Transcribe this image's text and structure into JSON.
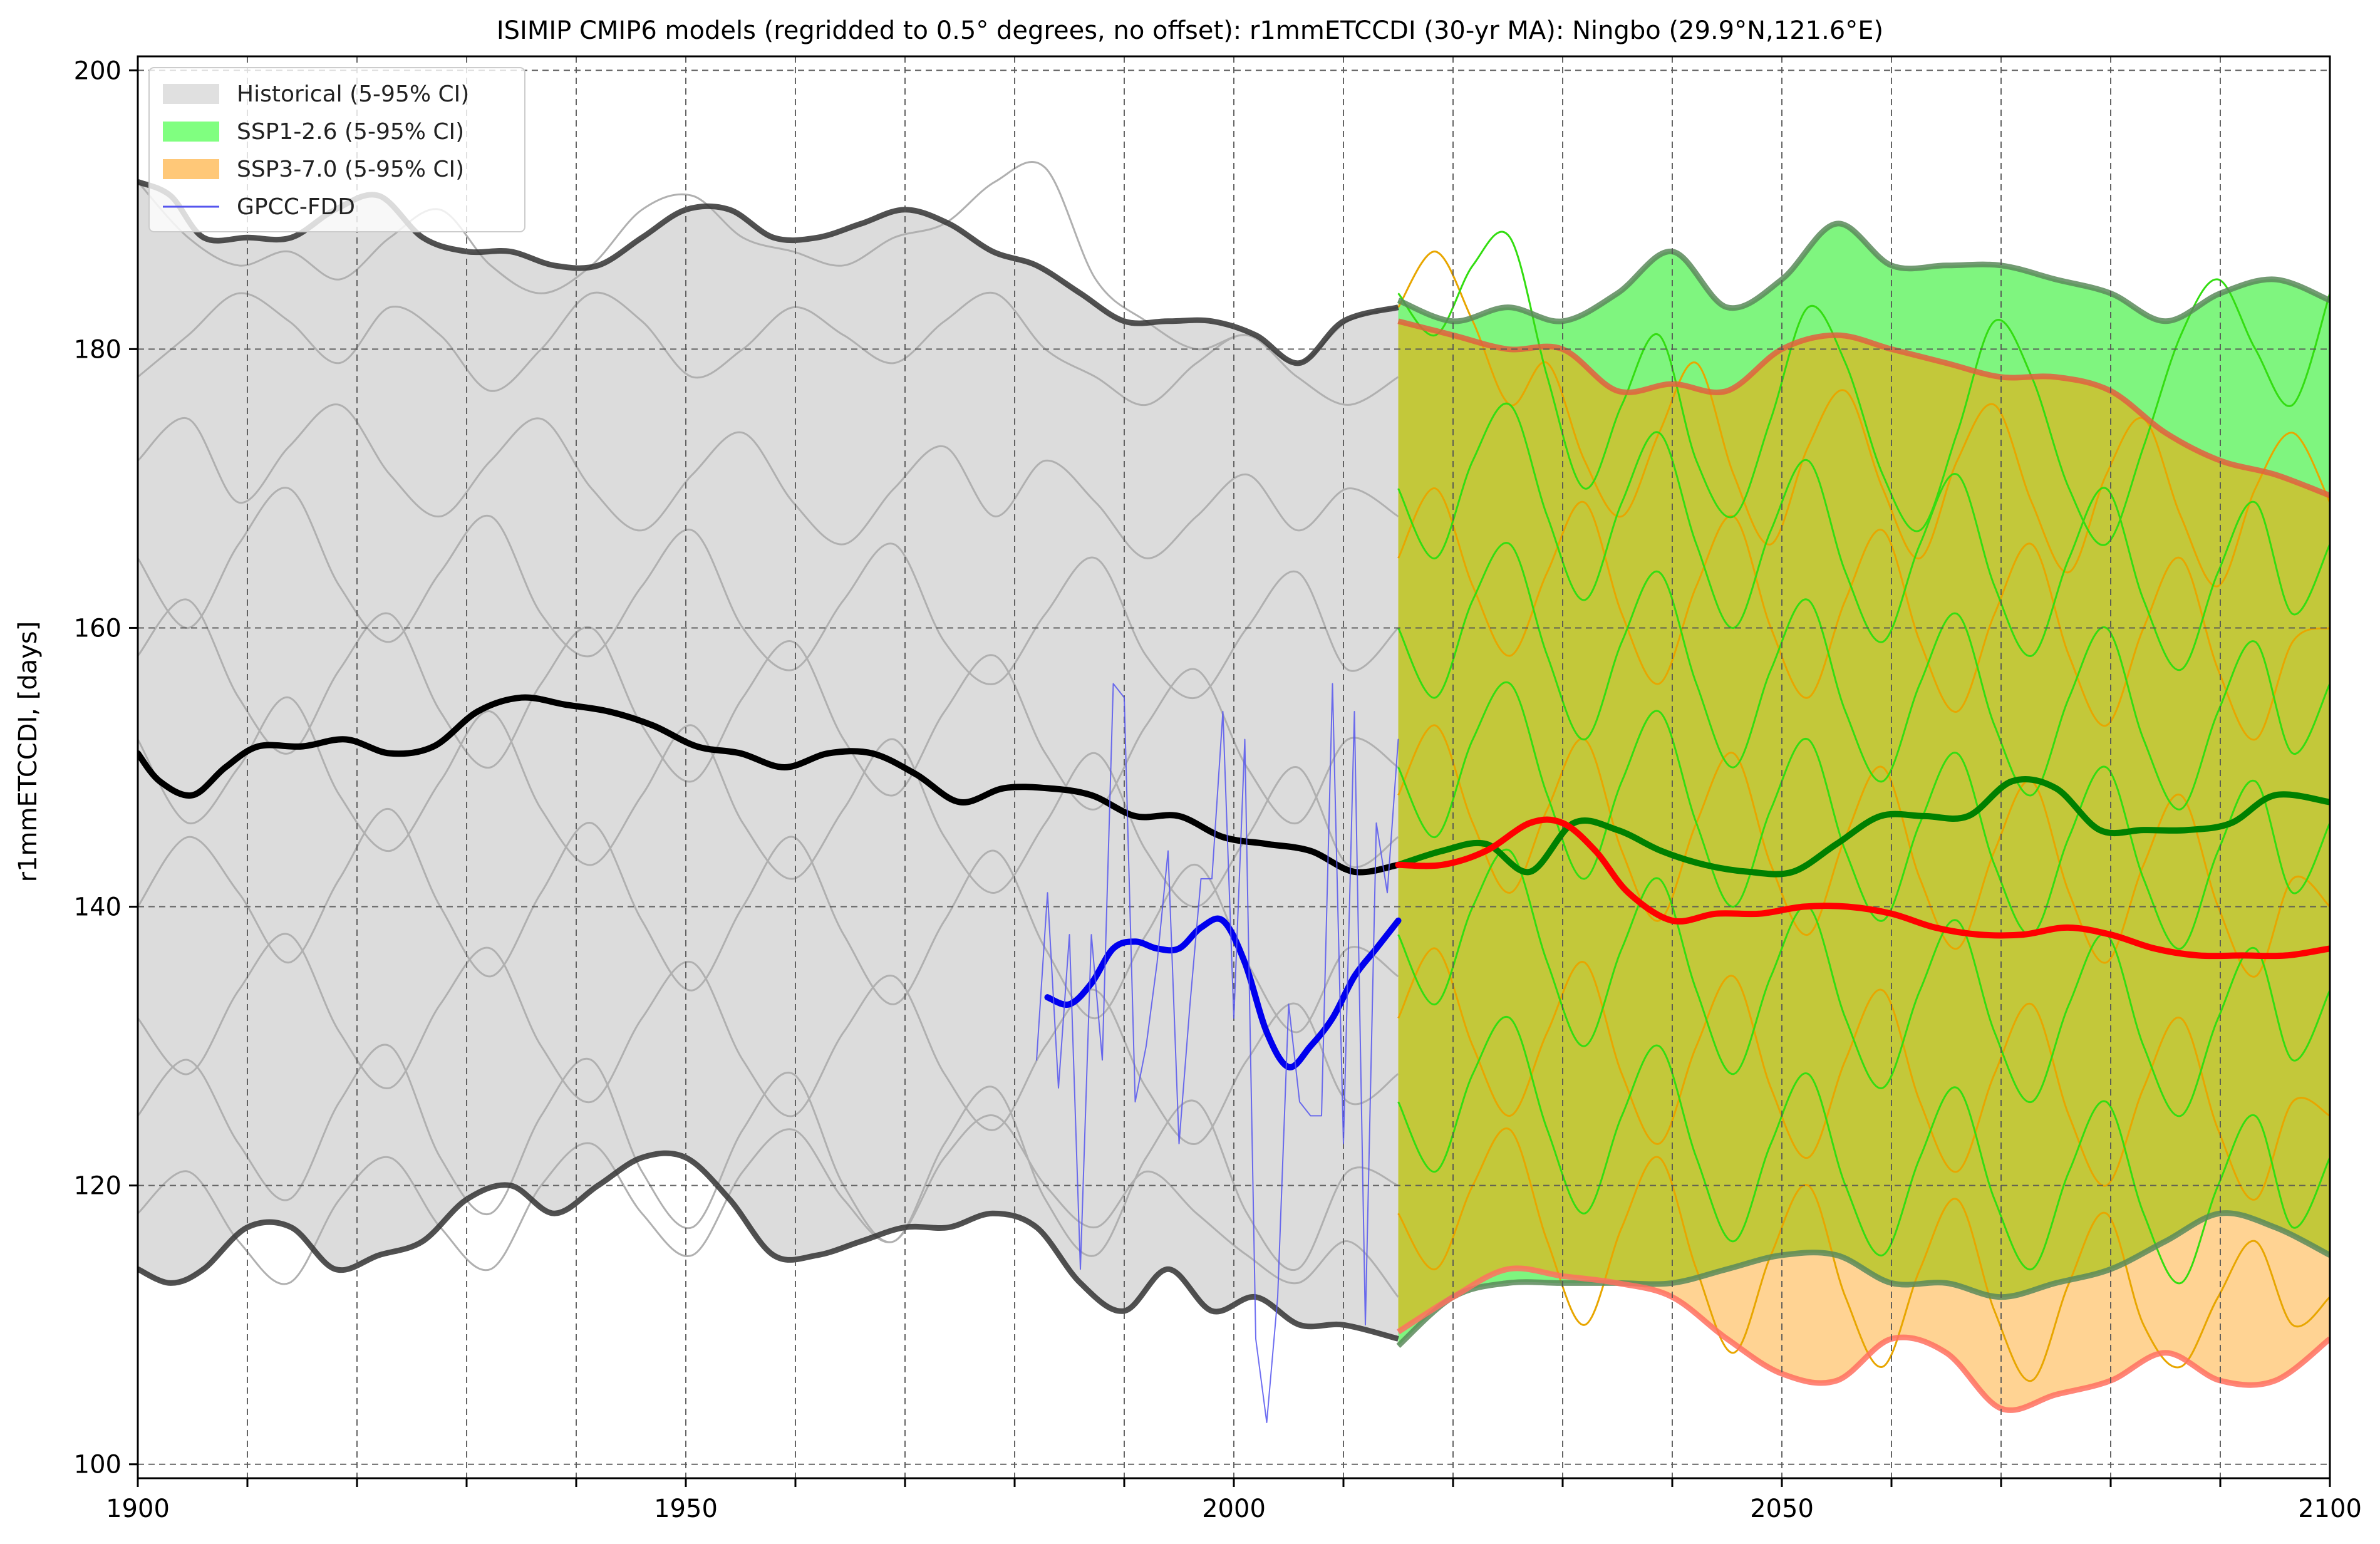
{
  "chart_data": {
    "type": "line",
    "title": "ISIMIP CMIP6 models (regridded to 0.5° degrees, no offset): r1mmETCCDI (30-yr MA): Ningbo (29.9°N,121.6°E)",
    "xlabel": "",
    "ylabel": "r1mmETCCDI, [days]",
    "xlim": [
      1900,
      2100
    ],
    "ylim": [
      99,
      201
    ],
    "x_ticks": [
      1900,
      1950,
      2000,
      2050,
      2100
    ],
    "y_ticks": [
      100,
      120,
      140,
      160,
      180,
      200
    ],
    "grid": true,
    "legend_position": "top-left",
    "legend": [
      {
        "label": "Historical (5-95% CI)",
        "color": "#e0e0e0",
        "kind": "patch"
      },
      {
        "label": "SSP1-2.6 (5-95% CI)",
        "color": "#80ff80",
        "kind": "patch"
      },
      {
        "label": "SSP3-7.0 (5-95% CI)",
        "color": "#ffc878",
        "kind": "patch"
      },
      {
        "label": "GPCC-FDD",
        "color": "#5555ee",
        "kind": "line"
      }
    ],
    "bands": [
      {
        "name": "Historical (5-95% CI)",
        "color": "#dcdcdc",
        "x": [
          1900,
          1903,
          1906,
          1910,
          1914,
          1918,
          1922,
          1926,
          1930,
          1934,
          1938,
          1942,
          1946,
          1950,
          1954,
          1958,
          1962,
          1966,
          1970,
          1974,
          1978,
          1982,
          1986,
          1990,
          1994,
          1998,
          2002,
          2006,
          2010,
          2015
        ],
        "upper": [
          192,
          191,
          188,
          188,
          188,
          190,
          191,
          188,
          187,
          187,
          186,
          186,
          188,
          190,
          190,
          188,
          188,
          189,
          190,
          189,
          187,
          186,
          184,
          182,
          182,
          182,
          181,
          179,
          182,
          183
        ],
        "lower": [
          114,
          113,
          114,
          117,
          117,
          114,
          115,
          116,
          119,
          120,
          118,
          120,
          122,
          122,
          119,
          115,
          115,
          116,
          117,
          117,
          118,
          117,
          113,
          111,
          114,
          111,
          112,
          110,
          110,
          109
        ]
      },
      {
        "name": "SSP1-2.6 (5-95% CI)",
        "color": "#7ff57f",
        "x": [
          2015,
          2020,
          2025,
          2030,
          2035,
          2040,
          2045,
          2050,
          2055,
          2060,
          2065,
          2070,
          2075,
          2080,
          2085,
          2090,
          2095,
          2100
        ],
        "upper": [
          183.5,
          182,
          183,
          182,
          184,
          187,
          183,
          185,
          189,
          186,
          186,
          186,
          185,
          184,
          182,
          184,
          185,
          183.5
        ],
        "lower": [
          108.5,
          112,
          113,
          113,
          113,
          113,
          114,
          115,
          115,
          113,
          113,
          112,
          113,
          114,
          116,
          118,
          117,
          115
        ]
      },
      {
        "name": "SSP3-7.0 (5-95% CI)",
        "color": "#ffc878",
        "x": [
          2015,
          2020,
          2025,
          2030,
          2035,
          2040,
          2045,
          2050,
          2055,
          2060,
          2065,
          2070,
          2075,
          2080,
          2085,
          2090,
          2095,
          2100
        ],
        "upper": [
          182,
          181,
          180,
          180,
          177,
          177.5,
          177,
          180,
          181,
          180,
          179,
          178,
          178,
          177,
          174,
          172,
          171,
          169.5
        ],
        "lower": [
          109.5,
          112,
          114,
          113.5,
          113,
          112,
          109,
          106.5,
          106,
          109,
          108,
          104,
          105,
          106,
          108,
          106,
          106,
          109
        ]
      }
    ],
    "series": [
      {
        "name": "Historical multi-model median",
        "color": "#000000",
        "width": 10,
        "x": [
          1900,
          1902,
          1905,
          1908,
          1911,
          1915,
          1919,
          1923,
          1927,
          1931,
          1935,
          1939,
          1943,
          1947,
          1951,
          1955,
          1959,
          1963,
          1967,
          1971,
          1975,
          1979,
          1983,
          1987,
          1991,
          1995,
          1999,
          2003,
          2007,
          2011,
          2015
        ],
        "values": [
          151,
          149,
          148,
          150,
          151.5,
          151.5,
          152,
          151,
          151.5,
          154,
          155,
          154.5,
          154,
          153,
          151.5,
          151,
          150,
          151,
          151,
          149.5,
          147.5,
          148.5,
          148.5,
          148,
          146.5,
          146.5,
          145,
          144.5,
          144,
          142.5,
          143
        ]
      },
      {
        "name": "SSP1-2.6 multi-model median",
        "color": "#008000",
        "width": 10,
        "x": [
          2015,
          2019,
          2023,
          2027,
          2031,
          2035,
          2039,
          2043,
          2047,
          2051,
          2055,
          2059,
          2063,
          2067,
          2071,
          2075,
          2079,
          2083,
          2087,
          2091,
          2095,
          2100
        ],
        "values": [
          143,
          144,
          144.5,
          142.5,
          146,
          145.5,
          144,
          143,
          142.5,
          142.5,
          144.5,
          146.5,
          146.5,
          146.5,
          149,
          148.5,
          145.5,
          145.5,
          145.5,
          146,
          148,
          147.5
        ]
      },
      {
        "name": "SSP3-7.0 multi-model median",
        "color": "#ff0000",
        "width": 10,
        "x": [
          2015,
          2019,
          2023,
          2027,
          2030,
          2033,
          2036,
          2040,
          2044,
          2048,
          2052,
          2056,
          2060,
          2064,
          2068,
          2072,
          2076,
          2080,
          2084,
          2088,
          2092,
          2096,
          2100
        ],
        "values": [
          143,
          143,
          144,
          146,
          146,
          144,
          141,
          139,
          139.5,
          139.5,
          140,
          140,
          139.5,
          138.5,
          138,
          138,
          138.5,
          138,
          137,
          136.5,
          136.5,
          136.5,
          137
        ]
      },
      {
        "name": "GPCC-FDD 30-yr MA",
        "color": "#0000ee",
        "width": 10,
        "x": [
          1983,
          1985,
          1987,
          1989,
          1991,
          1993,
          1995,
          1997,
          1999,
          2001,
          2003,
          2005,
          2007,
          2009,
          2011,
          2013,
          2015
        ],
        "values": [
          133.5,
          133,
          134.5,
          137,
          137.5,
          137,
          137,
          138.5,
          139,
          136,
          131,
          128.5,
          130,
          132,
          135,
          137,
          139
        ]
      },
      {
        "name": "GPCC-FDD",
        "color": "#5555ee",
        "width": 2,
        "x": [
          1982,
          1983,
          1984,
          1985,
          1986,
          1987,
          1988,
          1989,
          1990,
          1991,
          1992,
          1993,
          1994,
          1995,
          1996,
          1997,
          1998,
          1999,
          2000,
          2001,
          2002,
          2003,
          2004,
          2005,
          2006,
          2007,
          2008,
          2009,
          2010,
          2011,
          2012,
          2013,
          2014,
          2015
        ],
        "values": [
          129,
          141,
          127,
          138,
          114,
          138,
          129,
          156,
          155,
          126,
          130,
          136,
          144,
          123,
          133,
          142,
          142,
          154,
          132,
          152,
          109,
          103,
          112,
          133,
          126,
          125,
          125,
          156,
          123,
          154,
          110,
          146,
          141,
          152
        ]
      }
    ],
    "grey_model_lines": [
      [
        192,
        188,
        186,
        187,
        185,
        188,
        190,
        186,
        184,
        186,
        190,
        191,
        188,
        187,
        186,
        188,
        189,
        192,
        193,
        185,
        182,
        180,
        181,
        179,
        182,
        183
      ],
      [
        178,
        181,
        184,
        182,
        179,
        183,
        181,
        177,
        180,
        184,
        182,
        178,
        180,
        183,
        181,
        179,
        182,
        184,
        180,
        178,
        176,
        179,
        181,
        178,
        176,
        178
      ],
      [
        172,
        175,
        169,
        173,
        176,
        171,
        168,
        172,
        175,
        170,
        167,
        171,
        174,
        169,
        166,
        170,
        173,
        168,
        172,
        169,
        165,
        168,
        171,
        167,
        170,
        168
      ],
      [
        165,
        160,
        166,
        170,
        163,
        159,
        164,
        168,
        161,
        158,
        163,
        167,
        160,
        157,
        162,
        166,
        159,
        156,
        161,
        165,
        158,
        155,
        160,
        164,
        157,
        160
      ],
      [
        158,
        162,
        155,
        151,
        157,
        161,
        154,
        150,
        156,
        160,
        153,
        149,
        155,
        159,
        152,
        148,
        154,
        158,
        151,
        147,
        153,
        157,
        150,
        146,
        152,
        150
      ],
      [
        152,
        146,
        150,
        155,
        148,
        144,
        149,
        154,
        147,
        143,
        148,
        153,
        146,
        142,
        147,
        152,
        145,
        141,
        146,
        151,
        144,
        140,
        145,
        150,
        143,
        145
      ],
      [
        140,
        145,
        141,
        136,
        142,
        147,
        140,
        135,
        141,
        146,
        139,
        134,
        140,
        145,
        138,
        133,
        139,
        144,
        137,
        132,
        138,
        143,
        136,
        131,
        137,
        135
      ],
      [
        132,
        128,
        134,
        138,
        131,
        127,
        133,
        137,
        130,
        126,
        132,
        136,
        129,
        125,
        131,
        135,
        128,
        124,
        130,
        134,
        127,
        123,
        129,
        133,
        126,
        128
      ],
      [
        125,
        129,
        123,
        119,
        126,
        130,
        122,
        118,
        125,
        129,
        121,
        117,
        124,
        128,
        120,
        116,
        123,
        127,
        119,
        115,
        122,
        126,
        118,
        114,
        121,
        120
      ],
      [
        118,
        121,
        116,
        113,
        119,
        122,
        117,
        114,
        120,
        123,
        118,
        115,
        121,
        124,
        119,
        116,
        122,
        125,
        120,
        117,
        121,
        118,
        115,
        113,
        116,
        112
      ]
    ],
    "ssp_model_lines_green": [
      [
        184,
        181,
        186,
        188,
        178,
        170,
        176,
        181,
        172,
        168,
        175,
        183,
        179,
        171,
        167,
        174,
        182,
        178,
        170,
        166,
        173,
        181,
        185,
        180,
        176,
        184
      ],
      [
        170,
        165,
        172,
        176,
        168,
        162,
        169,
        174,
        166,
        160,
        167,
        172,
        164,
        159,
        166,
        171,
        163,
        158,
        165,
        170,
        162,
        157,
        164,
        169,
        161,
        166
      ],
      [
        160,
        155,
        162,
        166,
        158,
        152,
        159,
        164,
        156,
        150,
        157,
        162,
        154,
        149,
        156,
        161,
        153,
        148,
        155,
        160,
        152,
        147,
        154,
        159,
        151,
        156
      ],
      [
        150,
        145,
        152,
        156,
        148,
        142,
        149,
        154,
        146,
        140,
        147,
        152,
        144,
        139,
        146,
        151,
        143,
        138,
        145,
        150,
        142,
        137,
        144,
        149,
        141,
        146
      ],
      [
        138,
        133,
        140,
        144,
        136,
        130,
        137,
        142,
        134,
        128,
        135,
        140,
        132,
        127,
        134,
        139,
        131,
        126,
        133,
        138,
        130,
        125,
        132,
        137,
        129,
        134
      ],
      [
        126,
        121,
        128,
        132,
        124,
        118,
        125,
        130,
        122,
        116,
        123,
        128,
        120,
        115,
        122,
        127,
        119,
        114,
        121,
        126,
        118,
        113,
        120,
        125,
        117,
        122
      ]
    ],
    "ssp_model_lines_orange": [
      [
        183,
        187,
        182,
        176,
        179,
        172,
        168,
        174,
        179,
        171,
        166,
        173,
        177,
        170,
        165,
        172,
        176,
        169,
        164,
        171,
        175,
        168,
        163,
        170,
        174,
        169
      ],
      [
        165,
        170,
        163,
        158,
        164,
        169,
        161,
        156,
        163,
        168,
        160,
        155,
        162,
        167,
        159,
        154,
        161,
        166,
        158,
        153,
        160,
        165,
        157,
        152,
        159,
        160
      ],
      [
        148,
        153,
        146,
        141,
        147,
        152,
        144,
        139,
        146,
        151,
        143,
        138,
        145,
        150,
        142,
        137,
        144,
        149,
        141,
        136,
        143,
        148,
        140,
        135,
        142,
        140
      ],
      [
        132,
        137,
        130,
        125,
        131,
        136,
        128,
        123,
        130,
        135,
        127,
        122,
        129,
        134,
        126,
        121,
        128,
        133,
        125,
        120,
        127,
        132,
        124,
        119,
        126,
        125
      ],
      [
        118,
        114,
        120,
        124,
        116,
        110,
        117,
        122,
        114,
        108,
        115,
        120,
        112,
        107,
        114,
        119,
        111,
        106,
        113,
        118,
        110,
        107,
        112,
        116,
        110,
        112
      ]
    ]
  }
}
